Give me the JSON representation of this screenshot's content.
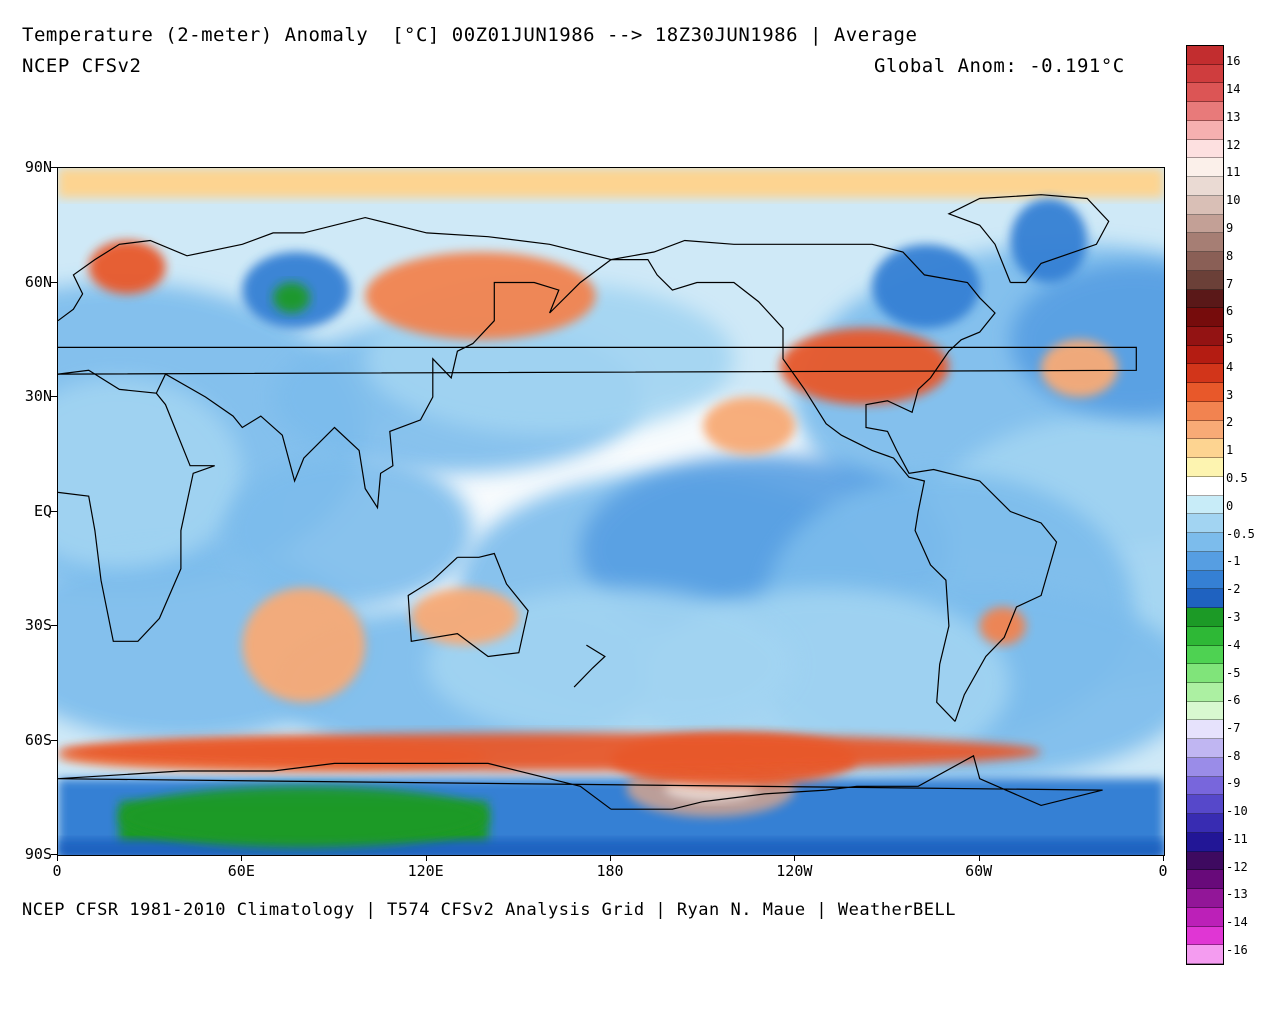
{
  "header": {
    "title": "Temperature (2-meter) Anomaly  [°C] 00Z01JUN1986 --> 18Z30JUN1986 | Average",
    "model": "NCEP CFSv2",
    "global_anom": "Global Anom: -0.191°C"
  },
  "footer": "NCEP CFSR 1981-2010 Climatology | T574 CFSv2 Analysis Grid | Ryan N. Maue | WeatherBELL",
  "axes": {
    "lat_labels": [
      "90N",
      "60N",
      "30N",
      "EQ",
      "30S",
      "60S",
      "90S"
    ],
    "lon_labels": [
      "0",
      "60E",
      "120E",
      "180",
      "120W",
      "60W",
      "0"
    ]
  },
  "colorbar": {
    "labels": [
      "16",
      "14",
      "13",
      "12",
      "11",
      "10",
      "9",
      "8",
      "7",
      "6",
      "5",
      "4",
      "3",
      "2",
      "1",
      "0.5",
      "0",
      "-0.5",
      "-1",
      "-2",
      "-3",
      "-4",
      "-5",
      "-6",
      "-7",
      "-8",
      "-9",
      "-10",
      "-11",
      "-12",
      "-13",
      "-14",
      "-16"
    ],
    "colors": [
      "#c22d2f",
      "#d04040",
      "#dc5a5a",
      "#e88080",
      "#f4b4b4",
      "#fcd8d8",
      "#fbeee6",
      "#e6cdc4",
      "#c8a59c",
      "#a87d72",
      "#8a5a50",
      "#6b3d36",
      "#5a1a1a",
      "#780e0e",
      "#951414",
      "#b0200f",
      "#c8300f",
      "#e0461a",
      "#ee6a35",
      "#f5905a",
      "#fab77e",
      "#fde39a",
      "#ffffff",
      "#cfeef8",
      "#a9d8f4",
      "#86c2ee",
      "#5ea6e6",
      "#3c84d8",
      "#1f62c2",
      "#1f9e2a",
      "#2cba35",
      "#4ad44f",
      "#7ee67a",
      "#a8f0a0",
      "#d2f7cc",
      "#ece8ff",
      "#c4baf4",
      "#9e90ea",
      "#7c6ade",
      "#5a4acc",
      "#3a2eb4",
      "#25189a",
      "#3b0a5e",
      "#660a78",
      "#8e1496",
      "#b81eb4",
      "#dc34d0",
      "#f050e2",
      "#f89af0"
    ],
    "cell_colors": [
      "#c22d2f",
      "#cf3d3e",
      "#dc5555",
      "#e87a7a",
      "#f5b0b0",
      "#fde0e0",
      "#fbf0ea",
      "#eadad3",
      "#d9bfb6",
      "#c3a096",
      "#a67e74",
      "#8a5f56",
      "#6b4038",
      "#5a1818",
      "#760c0c",
      "#931313",
      "#b41c12",
      "#d2351a",
      "#e8582a",
      "#f28350",
      "#f8aa76",
      "#fdd491",
      "#fdf4b0",
      "#ffffff",
      "#c8ecf8",
      "#a2d4f2",
      "#7cbcec",
      "#569ee2",
      "#3580d4",
      "#1f62c0",
      "#1c9a26",
      "#2eb836",
      "#4ed252",
      "#80e47a",
      "#acf0a2",
      "#d8f8d0",
      "#e6e2fc",
      "#c0b6f2",
      "#9a8ce8",
      "#7866dc",
      "#5648ca",
      "#382cb2",
      "#221696",
      "#3e0a60",
      "#680a7a",
      "#921698",
      "#bc20b8",
      "#e036d4",
      "#f49cf0"
    ]
  },
  "chart_data": {
    "type": "heatmap",
    "variable": "Temperature (2-meter) Anomaly",
    "units": "°C",
    "period": "00Z01JUN1986 --> 18Z30JUN1986",
    "statistic": "Average",
    "global_anomaly_c": -0.191,
    "x_axis": [
      "0",
      "60E",
      "120E",
      "180",
      "120W",
      "60W",
      "0"
    ],
    "y_axis": [
      "90N",
      "60N",
      "30N",
      "EQ",
      "30S",
      "60S",
      "90S"
    ],
    "scale_levels": [
      16,
      14,
      13,
      12,
      11,
      10,
      9,
      8,
      7,
      6,
      5,
      4,
      3,
      2,
      1,
      0.5,
      0,
      -0.5,
      -1,
      -2,
      -3,
      -4,
      -5,
      -6,
      -7,
      -8,
      -9,
      -10,
      -11,
      -12,
      -13,
      -14,
      -16
    ],
    "regions": [
      {
        "lon": [
          10,
          35
        ],
        "lat": [
          57,
          71
        ],
        "value": 3
      },
      {
        "lon": [
          60,
          95
        ],
        "lat": [
          48,
          68
        ],
        "value": -2
      },
      {
        "lon": [
          70,
          82
        ],
        "lat": [
          52,
          60
        ],
        "value": -4
      },
      {
        "lon": [
          100,
          175
        ],
        "lat": [
          45,
          68
        ],
        "value": 2
      },
      {
        "lon": [
          -125,
          -70
        ],
        "lat": [
          28,
          48
        ],
        "value": 3
      },
      {
        "lon": [
          -95,
          -60
        ],
        "lat": [
          48,
          70
        ],
        "value": -2
      },
      {
        "lon": [
          -50,
          -25
        ],
        "lat": [
          60,
          82
        ],
        "value": -2
      },
      {
        "lon": [
          -40,
          -15
        ],
        "lat": [
          30,
          45
        ],
        "value": 1
      },
      {
        "lon": [
          -150,
          -120
        ],
        "lat": [
          15,
          30
        ],
        "value": 1
      },
      {
        "lon": [
          -175,
          -120
        ],
        "lat": [
          -80,
          -65
        ],
        "value": 9
      },
      {
        "lon": [
          -180,
          -100
        ],
        "lat": [
          -72,
          -58
        ],
        "value": 3
      },
      {
        "lon": [
          0,
          140
        ],
        "lat": [
          -68,
          -60
        ],
        "value": 2
      },
      {
        "lon": [
          -40,
          0
        ],
        "lat": [
          -68,
          -58
        ],
        "value": 3
      },
      {
        "lon": [
          20,
          140
        ],
        "lat": [
          -88,
          -72
        ],
        "value": -4
      },
      {
        "lon": [
          -60,
          -45
        ],
        "lat": [
          -35,
          -25
        ],
        "value": 2
      },
      {
        "lon": [
          115,
          150
        ],
        "lat": [
          -35,
          -20
        ],
        "value": 1
      },
      {
        "lon": [
          60,
          100
        ],
        "lat": [
          -50,
          -20
        ],
        "value": 1
      }
    ]
  }
}
